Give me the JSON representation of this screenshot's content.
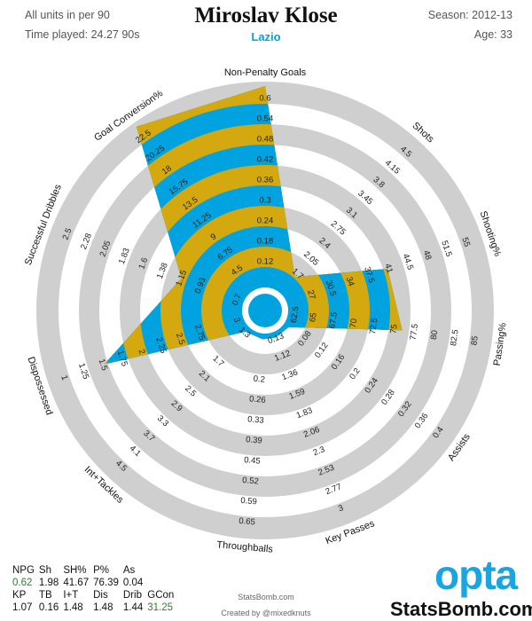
{
  "header": {
    "units_note": "All units in per 90",
    "time_played": "Time played: 24.27 90s",
    "player_name": "Miroslav Klose",
    "team": "Lazio",
    "season": "Season: 2012-13",
    "age": "Age: 33"
  },
  "colors": {
    "ring": "#cfcfcf",
    "band_blue": "#00a3e0",
    "band_gold": "#d4a90f",
    "team_text": "#00a3e0",
    "positive_value": "#2a7f2a",
    "opta_blue": "#1ba5e0"
  },
  "chart_data": {
    "type": "radar",
    "title": "Miroslav Klose",
    "axes": [
      {
        "name": "Non-Penalty Goals",
        "ticks": [
          "0.12",
          "0.18",
          "0.24",
          "0.3",
          "0.36",
          "0.42",
          "0.48",
          "0.54",
          "0.6"
        ],
        "value": 0.62
      },
      {
        "name": "Shots",
        "ticks": [
          "1.7",
          "2.05",
          "2.4",
          "2.75",
          "3.1",
          "3.45",
          "3.8",
          "4.15",
          "4.5"
        ],
        "value": 1.98
      },
      {
        "name": "Shooting%",
        "ticks": [
          "27",
          "30.5",
          "34",
          "37.5",
          "41",
          "44.5",
          "48",
          "51.5",
          "55"
        ],
        "value": 41.67
      },
      {
        "name": "Passing%",
        "ticks": [
          "65",
          "67.5",
          "70",
          "72.5",
          "75",
          "77.5",
          "80",
          "82.5",
          "85"
        ],
        "value": 76.39
      },
      {
        "name": "Assists",
        "ticks": [
          "0.08",
          "0.12",
          "0.16",
          "0.2",
          "0.24",
          "0.28",
          "0.32",
          "0.36",
          "0.4"
        ],
        "value": 0.04
      },
      {
        "name": "Key Passes",
        "ticks": [
          "1.12",
          "1.36",
          "1.59",
          "1.83",
          "2.06",
          "2.3",
          "2.53",
          "2.77",
          "3"
        ],
        "value": 1.07
      },
      {
        "name": "Throughballs",
        "ticks": [
          "0.2",
          "0.26",
          "0.33",
          "0.39",
          "0.45",
          "0.52",
          "0.59",
          "0.65"
        ],
        "value": 0.16
      },
      {
        "name": "Int+Tackles",
        "ticks": [
          "1.7",
          "2.1",
          "2.5",
          "2.9",
          "3.3",
          "3.7",
          "4.1",
          "4.5"
        ],
        "value": 1.48
      },
      {
        "name": "Dispossessed",
        "ticks": [
          "2.75",
          "2.5",
          "2.25",
          "2",
          "1.75",
          "1.5",
          "1.25",
          "1"
        ],
        "value": 1.48
      },
      {
        "name": "Successful Dribbles",
        "ticks": [
          "0.93",
          "1.15",
          "1.38",
          "1.6",
          "1.83",
          "2.05",
          "2.28",
          "2.5"
        ],
        "value": 1.44
      },
      {
        "name": "Goal Conversion%",
        "ticks": [
          "4.5",
          "6.75",
          "9",
          "11.25",
          "13.5",
          "15.75",
          "18",
          "20.25",
          "22.5"
        ],
        "value": 31.25
      }
    ],
    "inner_ticks": [
      {
        "axis": "Passing%",
        "label": "62.5"
      },
      {
        "axis": "Dispossessed",
        "label": "3"
      },
      {
        "axis": "Successful Dribbles",
        "label": "0.7"
      },
      {
        "axis": "Key Passes",
        "label": "0.13"
      },
      {
        "axis": "Int+Tackles",
        "label": "1.3"
      }
    ],
    "grid": true
  },
  "table": {
    "rows": [
      {
        "labels": [
          "NPG",
          "Sh",
          "SH%",
          "P%",
          "As"
        ],
        "values": [
          "0.62",
          "1.98",
          "41.67",
          "76.39",
          "0.04"
        ]
      },
      {
        "labels": [
          "KP",
          "TB",
          "I+T",
          "Dis",
          "Drib",
          "GCon"
        ],
        "values": [
          "1.07",
          "0.16",
          "1.48",
          "1.48",
          "1.44",
          "31.25"
        ]
      }
    ],
    "highlighted": [
      "0.62",
      "31.25"
    ]
  },
  "footer": {
    "site": "StatsBomb.com",
    "author": "Created by @mixedknuts",
    "opta_logo": "opta",
    "site_logo": "StatsBomb.com"
  }
}
